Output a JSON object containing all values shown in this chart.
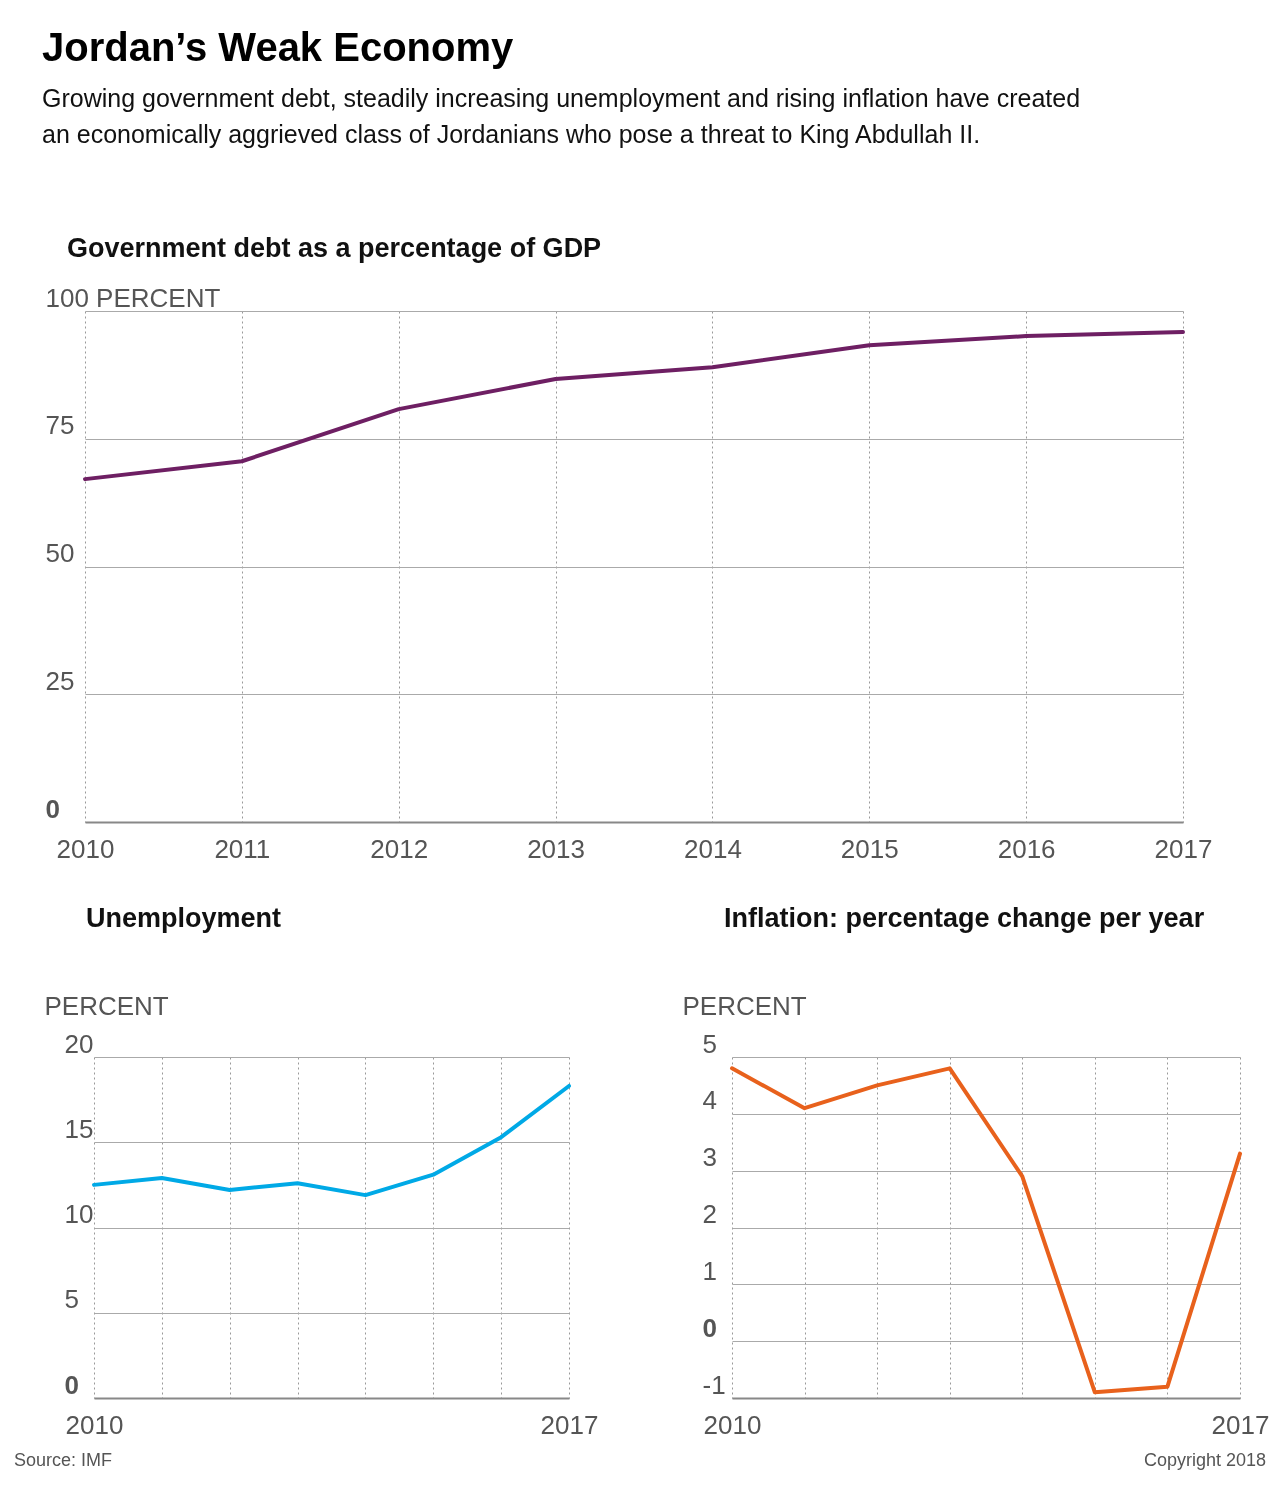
{
  "chart_data": [
    {
      "type": "line",
      "title": "Government debt as a percentage of GDP",
      "annotations": [
        "Jordan’s Weak Economy",
        "Growing government debt, steadily increasing unemployment and rising inflation have created an economically aggrieved class of Jordanians who pose a threat to King Abdullah II."
      ],
      "x": [
        2010,
        2011,
        2012,
        2013,
        2014,
        2015,
        2016,
        2017
      ],
      "xlim": [
        2010,
        2017
      ],
      "xticks": [
        2010,
        2011,
        2012,
        2013,
        2014,
        2015,
        2016,
        2017
      ],
      "ylim": [
        0,
        100
      ],
      "yticks": [
        0,
        25,
        50,
        75,
        {
          "value": 100,
          "label": "100 PERCENT"
        }
      ],
      "grid": true,
      "series": [
        {
          "color": "#6e1f63",
          "values": [
            67.1,
            70.6,
            80.8,
            86.7,
            89.0,
            93.3,
            95.1,
            95.9
          ]
        }
      ]
    },
    {
      "type": "line",
      "title": "Unemployment",
      "ylabel": "PERCENT",
      "annotations": [
        "Source: IMF"
      ],
      "x": [
        2010,
        2011,
        2012,
        2013,
        2014,
        2015,
        2016,
        2017
      ],
      "xlim": [
        2010,
        2017
      ],
      "xticks": [
        2010,
        {
          "value": 2011,
          "label": null
        },
        {
          "value": 2012,
          "label": null
        },
        {
          "value": 2013,
          "label": null
        },
        {
          "value": 2014,
          "label": null
        },
        {
          "value": 2015,
          "label": null
        },
        {
          "value": 2016,
          "label": null
        },
        2017
      ],
      "ylim": [
        0,
        20
      ],
      "yticks": [
        0,
        5,
        10,
        15,
        20
      ],
      "grid": true,
      "series": [
        {
          "color": "#00a9e6",
          "values": [
            12.5,
            12.9,
            12.2,
            12.6,
            11.9,
            13.1,
            15.3,
            18.3
          ]
        }
      ]
    },
    {
      "type": "line",
      "title": "Inflation: percentage change per year",
      "ylabel": "PERCENT",
      "annotations": [
        "Copyright 2018"
      ],
      "x": [
        2010,
        2011,
        2012,
        2013,
        2014,
        2015,
        2016,
        2017
      ],
      "xlim": [
        2010,
        2017
      ],
      "xticks": [
        2010,
        {
          "value": 2011,
          "label": null
        },
        {
          "value": 2012,
          "label": null
        },
        {
          "value": 2013,
          "label": null
        },
        {
          "value": 2014,
          "label": null
        },
        {
          "value": 2015,
          "label": null
        },
        {
          "value": 2016,
          "label": null
        },
        2017
      ],
      "ylim": [
        -1,
        5
      ],
      "yticks": [
        -1,
        0,
        1,
        2,
        3,
        4,
        5
      ],
      "grid": true,
      "series": [
        {
          "color": "#e8611c",
          "values": [
            4.8,
            4.1,
            4.5,
            4.8,
            2.9,
            -0.9,
            -0.8,
            3.3
          ]
        }
      ]
    }
  ]
}
